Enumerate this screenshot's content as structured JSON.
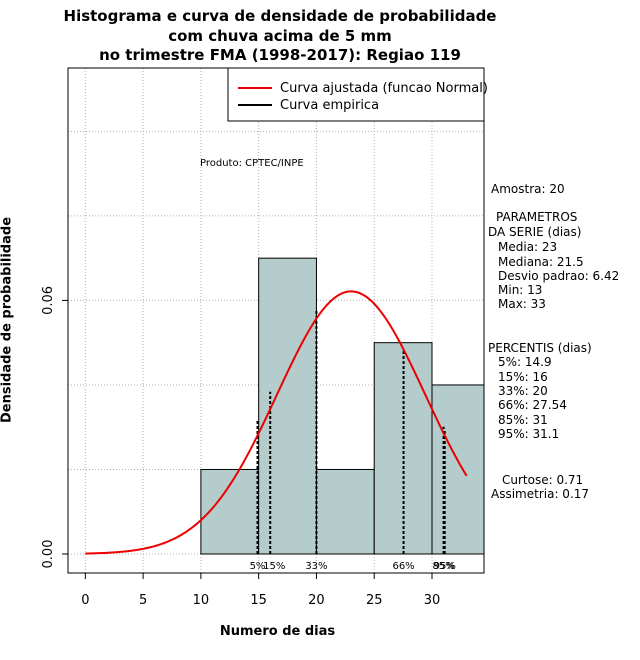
{
  "chart_data": {
    "type": "histogram",
    "title": [
      "Histograma e curva de densidade de probabilidade",
      "com chuva acima de 5 mm",
      "no trimestre FMA (1998-2017): Regiao 119"
    ],
    "xlabel": "Numero de dias",
    "ylabel": "Densidade de probabilidade",
    "xlim": [
      -1.5,
      34.5
    ],
    "ylim": [
      -0.0045,
      0.115
    ],
    "x_ticks": [
      0,
      5,
      10,
      15,
      20,
      25,
      30
    ],
    "y_ticks": [
      0.0,
      0.06
    ],
    "y_tick_labels": [
      "0.00",
      "0.06"
    ],
    "grid": true,
    "bars": [
      {
        "x0": 10,
        "x1": 15,
        "density": 0.02
      },
      {
        "x0": 15,
        "x1": 20,
        "density": 0.07
      },
      {
        "x0": 20,
        "x1": 25,
        "density": 0.02
      },
      {
        "x0": 25,
        "x1": 30,
        "density": 0.05
      },
      {
        "x0": 30,
        "x1": 35,
        "density": 0.04
      }
    ],
    "fitted_curve": {
      "name": "Curva ajustada (funcao Normal)",
      "color": "#ee0000",
      "mean": 23,
      "sd": 6.42,
      "x_range": [
        0,
        33
      ]
    },
    "empirical_curve": {
      "name": "Curva empirica",
      "color": "#000000"
    },
    "legend_position": "top-right",
    "percentile_lines": [
      {
        "label": "5%",
        "x": 14.9,
        "y": 0.0316
      },
      {
        "label": "15%",
        "x": 16,
        "y": 0.0384
      },
      {
        "label": "33%",
        "x": 20,
        "y": 0.0575
      },
      {
        "label": "66%",
        "x": 27.54,
        "y": 0.0484
      },
      {
        "label": "85%",
        "x": 31,
        "y": 0.0301
      },
      {
        "label": "95%",
        "x": 31.1,
        "y": 0.0296
      }
    ],
    "product_label": "Produto: CPTEC/INPE"
  },
  "stats": {
    "amostra": "Amostra: 20",
    "parametros_title_1": "PARAMETROS",
    "parametros_title_2": "DA SERIE (dias)",
    "media": "Media: 23",
    "mediana": "Mediana: 21.5",
    "desvio": "Desvio padrao: 6.42",
    "min": "Min: 13",
    "max": "Max: 33",
    "percentis_title": "PERCENTIS (dias)",
    "p5": "5%: 14.9",
    "p15": "15%: 16",
    "p33": "33%: 20",
    "p66": "66%: 27.54",
    "p85": "85%: 31",
    "p95": "95%: 31.1",
    "curtose": "Curtose: 0.71",
    "assimetria": "Assimetria: 0.17"
  },
  "colors": {
    "bar_fill": "#b4cccc",
    "grid": "#b0b0b0"
  }
}
